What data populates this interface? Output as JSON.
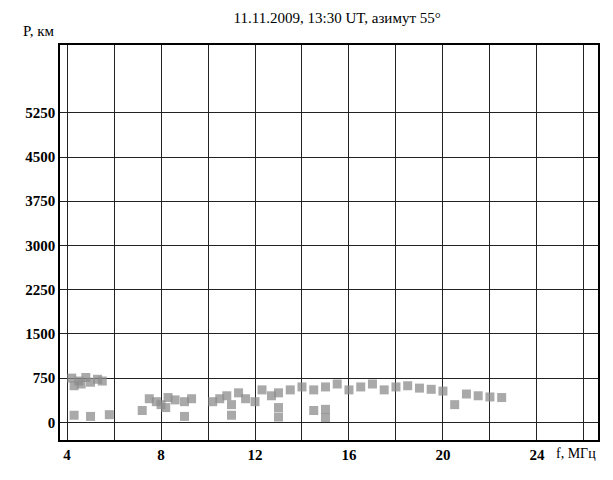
{
  "chart_data": {
    "type": "scatter",
    "title": "11.11.2009, 13:30 UT, азимут 55°",
    "xlabel": "f, МГц",
    "ylabel": "P, км",
    "x": [
      4.2,
      4.5,
      4.8,
      5.0,
      5.3,
      5.5,
      4.3,
      4.6,
      4.3,
      5.0,
      5.8,
      7.2,
      7.5,
      7.8,
      8.0,
      8.3,
      8.6,
      9.0,
      9.3,
      8.2,
      10.2,
      10.5,
      10.8,
      11.0,
      11.3,
      11.6,
      12.0,
      12.3,
      12.7,
      13.0,
      13.5,
      14.0,
      13.0,
      14.5,
      15.0,
      14.5,
      15.0,
      15.5,
      16.0,
      16.5,
      17.0,
      17.5,
      18.0,
      18.5,
      19.0,
      19.5,
      20.0,
      20.5,
      21.0,
      21.5,
      22.0,
      22.5,
      9.0,
      11.0,
      13.0,
      15.0
    ],
    "y": [
      750,
      700,
      760,
      680,
      730,
      700,
      620,
      650,
      120,
      100,
      130,
      200,
      400,
      350,
      300,
      420,
      380,
      350,
      400,
      250,
      350,
      400,
      450,
      300,
      500,
      400,
      350,
      550,
      450,
      500,
      550,
      600,
      250,
      200,
      220,
      550,
      600,
      650,
      550,
      600,
      650,
      550,
      600,
      620,
      580,
      560,
      530,
      300,
      480,
      450,
      430,
      420,
      100,
      120,
      90,
      80
    ],
    "color": "#8c8c8c",
    "marker": "square",
    "xlim": [
      3.7,
      26.6
    ],
    "ylim": [
      -300,
      6400
    ],
    "xticks": [
      4,
      8,
      12,
      16,
      20,
      24
    ],
    "yticks": [
      0,
      750,
      1500,
      2250,
      3000,
      3750,
      4500,
      5250
    ],
    "grid": true
  }
}
